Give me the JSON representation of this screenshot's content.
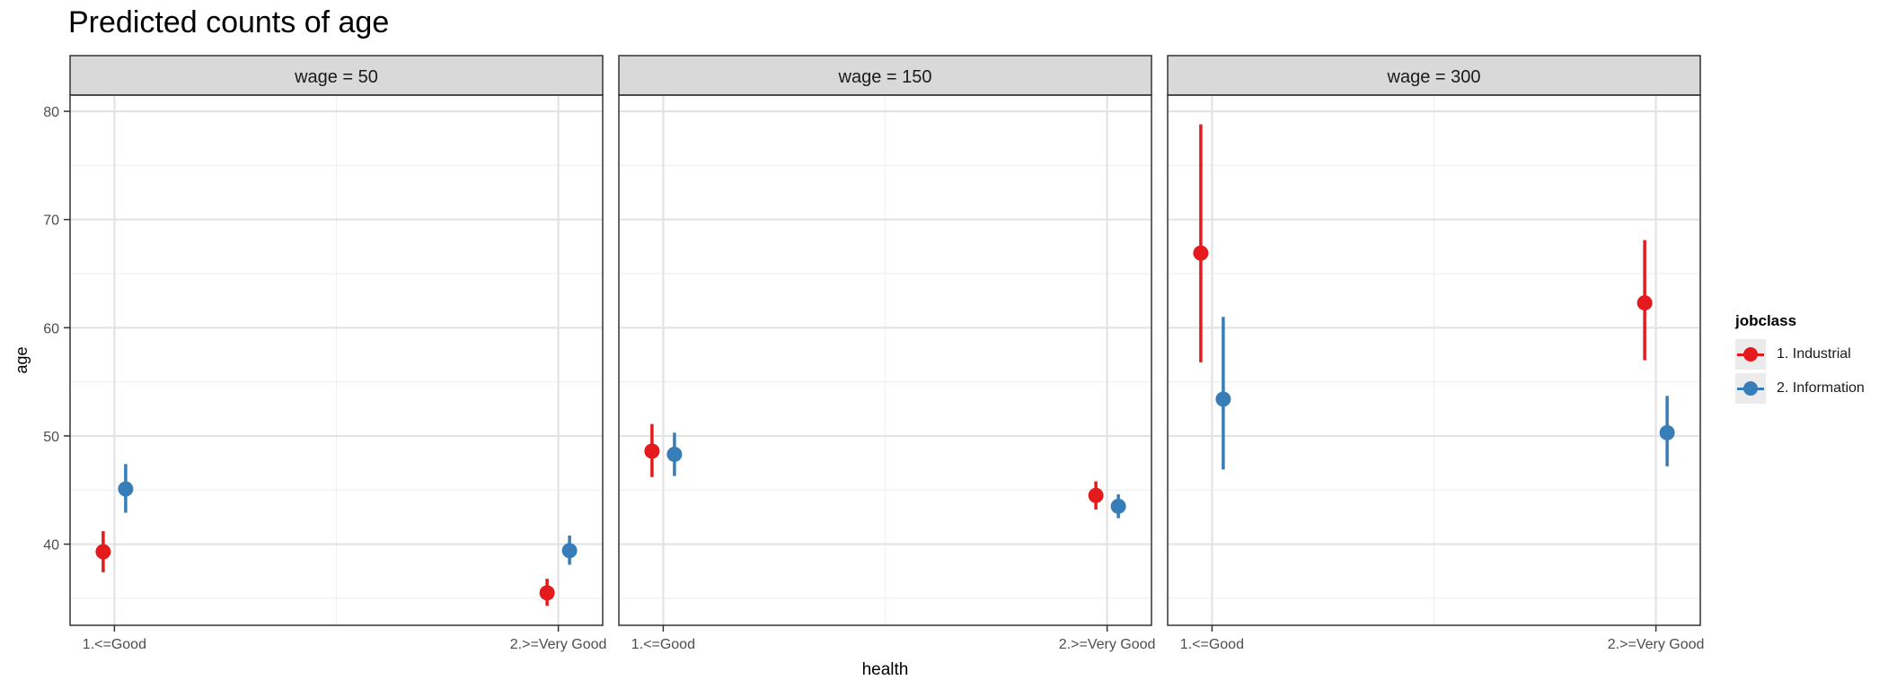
{
  "chart_data": {
    "type": "scatter",
    "title": "Predicted counts of age",
    "xlabel": "health",
    "ylabel": "age",
    "ylim": [
      32.5,
      81.5
    ],
    "yticks": [
      40,
      50,
      60,
      70,
      80
    ],
    "categories": [
      "1.<=Good",
      "2.>=Very Good"
    ],
    "legend": {
      "title": "jobclass",
      "position": "right"
    },
    "series": [
      {
        "name": "1. Industrial",
        "color": "#e41a1c"
      },
      {
        "name": "2. Information",
        "color": "#377eb8"
      }
    ],
    "facets": [
      {
        "label": "wage = 50",
        "points": [
          {
            "series": "1. Industrial",
            "x": "1.<=Good",
            "y": 39.3,
            "low": 37.4,
            "high": 41.2
          },
          {
            "series": "2. Information",
            "x": "1.<=Good",
            "y": 45.1,
            "low": 42.9,
            "high": 47.4
          },
          {
            "series": "1. Industrial",
            "x": "2.>=Very Good",
            "y": 35.5,
            "low": 34.3,
            "high": 36.8
          },
          {
            "series": "2. Information",
            "x": "2.>=Very Good",
            "y": 39.4,
            "low": 38.1,
            "high": 40.8
          }
        ]
      },
      {
        "label": "wage = 150",
        "points": [
          {
            "series": "1. Industrial",
            "x": "1.<=Good",
            "y": 48.6,
            "low": 46.2,
            "high": 51.1
          },
          {
            "series": "2. Information",
            "x": "1.<=Good",
            "y": 48.3,
            "low": 46.3,
            "high": 50.3
          },
          {
            "series": "1. Industrial",
            "x": "2.>=Very Good",
            "y": 44.5,
            "low": 43.2,
            "high": 45.8
          },
          {
            "series": "2. Information",
            "x": "2.>=Very Good",
            "y": 43.5,
            "low": 42.4,
            "high": 44.6
          }
        ]
      },
      {
        "label": "wage = 300",
        "points": [
          {
            "series": "1. Industrial",
            "x": "1.<=Good",
            "y": 66.9,
            "low": 56.8,
            "high": 78.8
          },
          {
            "series": "2. Information",
            "x": "1.<=Good",
            "y": 53.4,
            "low": 46.9,
            "high": 61.0
          },
          {
            "series": "1. Industrial",
            "x": "2.>=Very Good",
            "y": 62.3,
            "low": 57.0,
            "high": 68.1
          },
          {
            "series": "2. Information",
            "x": "2.>=Very Good",
            "y": 50.3,
            "low": 47.2,
            "high": 53.7
          }
        ]
      }
    ]
  }
}
